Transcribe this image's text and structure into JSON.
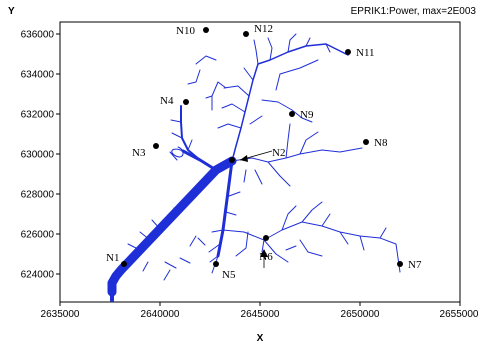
{
  "plot": {
    "title": "EPRIK1:Power, max=2E003",
    "x_axis_label": "X",
    "y_axis_label": "Y",
    "x_range": [
      2635000,
      2655000
    ],
    "y_range": [
      622600,
      636600
    ],
    "x_ticks": [
      "2635000",
      "2640000",
      "2645000",
      "2650000",
      "2655000"
    ],
    "y_ticks": [
      "624000",
      "626000",
      "628000",
      "630000",
      "632000",
      "634000",
      "636000"
    ],
    "feeder_color": "#1f2fd8",
    "node_color": "#000000"
  },
  "nodes": [
    {
      "label": "N1",
      "x": 2638200,
      "y": 624500
    },
    {
      "label": "N2",
      "x": 2643600,
      "y": 629700
    },
    {
      "label": "N3",
      "x": 2639800,
      "y": 630400
    },
    {
      "label": "N4",
      "x": 2641300,
      "y": 632600
    },
    {
      "label": "N5",
      "x": 2642800,
      "y": 624500
    },
    {
      "label": "N6",
      "x": 2645300,
      "y": 625800
    },
    {
      "label": "N7",
      "x": 2652000,
      "y": 624500
    },
    {
      "label": "N8",
      "x": 2650300,
      "y": 630600
    },
    {
      "label": "N9",
      "x": 2646600,
      "y": 632000
    },
    {
      "label": "N10",
      "x": 2642300,
      "y": 636200
    },
    {
      "label": "N11",
      "x": 2649400,
      "y": 635100
    },
    {
      "label": "N12",
      "x": 2644300,
      "y": 636000
    }
  ]
}
